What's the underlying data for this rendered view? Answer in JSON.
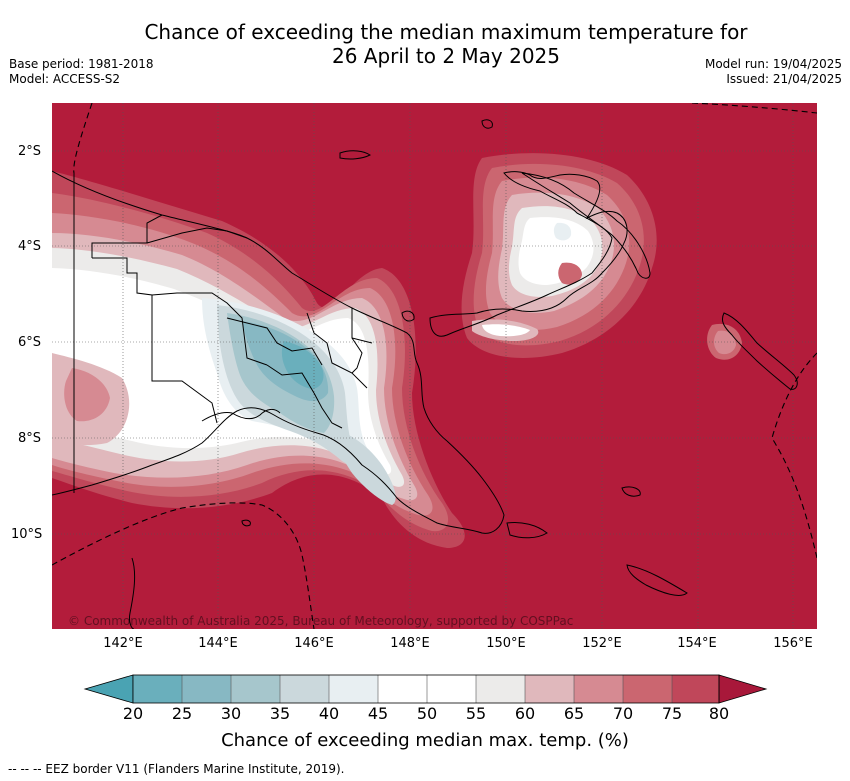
{
  "title": {
    "line1": "Chance of exceeding the median maximum temperature for",
    "line2": "26 April to 2 May 2025"
  },
  "meta": {
    "base_period": "Base period: 1981-2018",
    "model": "Model: ACCESS-S2",
    "model_run": "Model run: 19/04/2025",
    "issued": "Issued: 21/04/2025"
  },
  "map": {
    "copyright": "© Commonwealth of Australia 2025, Bureau of Meteorology, supported by COSPPac",
    "lat_labels": [
      "2°S",
      "4°S",
      "6°S",
      "8°S",
      "10°S"
    ],
    "lon_labels": [
      "142°E",
      "144°E",
      "146°E",
      "148°E",
      "150°E",
      "152°E",
      "154°E",
      "156°E"
    ],
    "colors": {
      "c80": "#b31c3b",
      "c75": "#c0475a",
      "c70": "#cb6670",
      "c65": "#d68a92",
      "c60": "#e0b8bc",
      "c55": "#ecebea",
      "c50": "#ffffff",
      "c40": "#e8eff2",
      "c35": "#cbd8dc",
      "c30": "#a6c6cc",
      "c25": "#87b8c3",
      "c20": "#6aafbc",
      "land": "#000000"
    }
  },
  "colorbar": {
    "ticks": [
      "20",
      "25",
      "30",
      "35",
      "40",
      "45",
      "50",
      "55",
      "60",
      "65",
      "70",
      "75",
      "80"
    ],
    "colors": [
      "#6aafbc",
      "#87b8c3",
      "#a6c6cc",
      "#cbd8dc",
      "#e8eff2",
      "#ffffff",
      "#ffffff",
      "#ecebea",
      "#e0b8bc",
      "#d68a92",
      "#cb6670",
      "#c0475a"
    ],
    "low_extend_color": "#4aa3b3",
    "high_extend_color": "#a8183a",
    "label": "Chance of exceeding median max. temp. (%)"
  },
  "footnote": "--  --  -- EEZ border V11 (Flanders Marine Institute, 2019)."
}
